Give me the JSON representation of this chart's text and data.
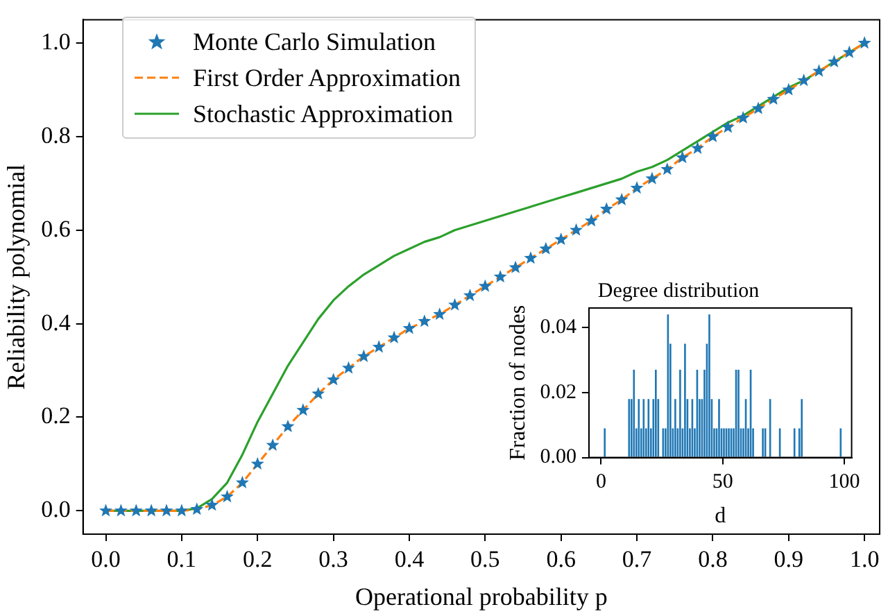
{
  "chart_data": [
    {
      "type": "line",
      "xlabel": "Operational probability p",
      "ylabel": "Reliability polynomial",
      "legend": "top left",
      "x": [
        0,
        0.02,
        0.04,
        0.06,
        0.08,
        0.1,
        0.12,
        0.14,
        0.16,
        0.18,
        0.2,
        0.22,
        0.24,
        0.26,
        0.28,
        0.3,
        0.32,
        0.34,
        0.36,
        0.38,
        0.4,
        0.42,
        0.44,
        0.46,
        0.48,
        0.5,
        0.52,
        0.54,
        0.56,
        0.58,
        0.6,
        0.62,
        0.64,
        0.66,
        0.68,
        0.7,
        0.72,
        0.74,
        0.76,
        0.78,
        0.8,
        0.82,
        0.84,
        0.86,
        0.88,
        0.9,
        0.92,
        0.94,
        0.96,
        0.98,
        1.0
      ],
      "series": [
        {
          "name": "Monte Carlo Simulation",
          "type": "scatter",
          "marker": "star",
          "color": "#1f77b4",
          "values": [
            0,
            0,
            0,
            0,
            0,
            0,
            0.003,
            0.012,
            0.03,
            0.06,
            0.1,
            0.14,
            0.18,
            0.215,
            0.25,
            0.28,
            0.305,
            0.33,
            0.35,
            0.37,
            0.39,
            0.405,
            0.42,
            0.44,
            0.46,
            0.48,
            0.5,
            0.52,
            0.54,
            0.56,
            0.58,
            0.6,
            0.62,
            0.645,
            0.665,
            0.69,
            0.71,
            0.73,
            0.755,
            0.775,
            0.8,
            0.82,
            0.84,
            0.86,
            0.88,
            0.9,
            0.92,
            0.94,
            0.96,
            0.98,
            1.0
          ]
        },
        {
          "name": "First Order Approximation",
          "type": "line",
          "line_style": "dashed",
          "color": "#ff7f0e",
          "values": [
            0,
            0,
            0,
            0,
            0,
            0,
            0.003,
            0.012,
            0.03,
            0.06,
            0.1,
            0.14,
            0.18,
            0.215,
            0.25,
            0.28,
            0.305,
            0.33,
            0.35,
            0.37,
            0.39,
            0.405,
            0.42,
            0.44,
            0.46,
            0.48,
            0.5,
            0.52,
            0.54,
            0.56,
            0.58,
            0.6,
            0.62,
            0.645,
            0.665,
            0.69,
            0.71,
            0.73,
            0.755,
            0.775,
            0.8,
            0.82,
            0.84,
            0.86,
            0.88,
            0.9,
            0.92,
            0.94,
            0.96,
            0.98,
            1.0
          ]
        },
        {
          "name": "Stochastic Approximation",
          "type": "line",
          "line_style": "solid",
          "color": "#2ca02c",
          "values": [
            0,
            0,
            0,
            0,
            0,
            0,
            0.005,
            0.025,
            0.06,
            0.12,
            0.19,
            0.25,
            0.31,
            0.36,
            0.41,
            0.45,
            0.48,
            0.505,
            0.525,
            0.545,
            0.56,
            0.575,
            0.585,
            0.6,
            0.61,
            0.62,
            0.63,
            0.64,
            0.65,
            0.66,
            0.67,
            0.68,
            0.69,
            0.7,
            0.71,
            0.725,
            0.735,
            0.75,
            0.77,
            0.79,
            0.81,
            0.83,
            0.845,
            0.865,
            0.885,
            0.905,
            0.92,
            0.94,
            0.96,
            0.98,
            1.0
          ]
        }
      ],
      "xlim": [
        -0.03,
        1.02
      ],
      "xticks": [
        {
          "value": 0,
          "label": "0.0"
        },
        0.1,
        0.2,
        0.3,
        0.4,
        0.5,
        0.6,
        0.7,
        0.8,
        0.9,
        {
          "value": 1,
          "label": "1.0"
        }
      ],
      "ylim": [
        -0.05,
        1.05
      ],
      "yticks": [
        {
          "value": 0,
          "label": "0.0"
        },
        0.2,
        0.4,
        0.6,
        0.8,
        {
          "value": 1,
          "label": "1.0"
        }
      ]
    },
    {
      "type": "histogram",
      "title": "Degree distribution",
      "xlabel": "d",
      "ylabel": "Fraction of nodes",
      "color": "#1f77b4",
      "bins": [
        0,
        1,
        2,
        3,
        4,
        5,
        6,
        7,
        8,
        9,
        10,
        11,
        12,
        13,
        14,
        15,
        16,
        17,
        18,
        19,
        20,
        21,
        22,
        23,
        24,
        25,
        26,
        27,
        28,
        29,
        30,
        31,
        32,
        33,
        34,
        35,
        36,
        37,
        38,
        39,
        40,
        41,
        42,
        43,
        44,
        45,
        46,
        47,
        48,
        49,
        50,
        51,
        52,
        53,
        54,
        55,
        56,
        57,
        58,
        59,
        60,
        61,
        62,
        63,
        64,
        65,
        66,
        67,
        68,
        69,
        70,
        71,
        72,
        73,
        74,
        75,
        76,
        77,
        78,
        79,
        80,
        81,
        82,
        83,
        84,
        85,
        86,
        87,
        88,
        89,
        90,
        91,
        92,
        93,
        94,
        95,
        96,
        97,
        98,
        99,
        100
      ],
      "values": [
        0,
        0.009,
        0,
        0,
        0,
        0,
        0,
        0,
        0,
        0,
        0,
        0.018,
        0.018,
        0.027,
        0.009,
        0.018,
        0.009,
        0.018,
        0.009,
        0.018,
        0.009,
        0.018,
        0.027,
        0.018,
        0,
        0.009,
        0.009,
        0.044,
        0.035,
        0.009,
        0.018,
        0.009,
        0.027,
        0.009,
        0.035,
        0.018,
        0.009,
        0.018,
        0.009,
        0.027,
        0.018,
        0.018,
        0.027,
        0.035,
        0.044,
        0.018,
        0.009,
        0.009,
        0.018,
        0.009,
        0.009,
        0.009,
        0.009,
        0.009,
        0.009,
        0.027,
        0.027,
        0.009,
        0.009,
        0.018,
        0.009,
        0.027,
        0.009,
        0,
        0,
        0,
        0.009,
        0.009,
        0,
        0.018,
        0,
        0,
        0,
        0.009,
        0,
        0,
        0,
        0,
        0,
        0.009,
        0,
        0.009,
        0.018,
        0,
        0,
        0,
        0,
        0,
        0,
        0,
        0,
        0,
        0,
        0,
        0,
        0,
        0,
        0,
        0.009,
        0
      ],
      "xlim": [
        -5,
        103
      ],
      "xticks": [
        0,
        50,
        100
      ],
      "ylim": [
        0,
        0.046
      ],
      "yticks": [
        {
          "value": 0,
          "label": "0.00"
        },
        {
          "value": 0.02,
          "label": "0.02"
        },
        {
          "value": 0.04,
          "label": "0.04"
        }
      ]
    }
  ]
}
